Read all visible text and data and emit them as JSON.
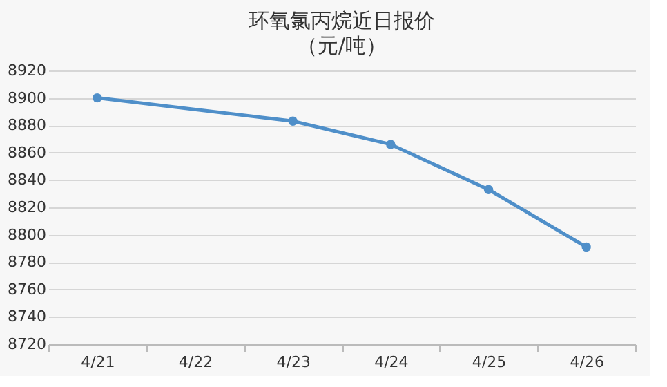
{
  "chart_data": {
    "type": "line",
    "title": "环氧氯丙烷近日报价",
    "subtitle": "（元/吨）",
    "categories": [
      "4/21",
      "4/22",
      "4/23",
      "4/24",
      "4/25",
      "4/26"
    ],
    "series": [
      {
        "color": "#4f8fc9",
        "values": [
          8900,
          null,
          8883,
          8866,
          8833,
          8791
        ]
      }
    ],
    "ylim": [
      8720,
      8920
    ],
    "yticks": [
      8720,
      8740,
      8760,
      8780,
      8800,
      8820,
      8840,
      8860,
      8880,
      8900,
      8920
    ],
    "grid": "y",
    "marker": "circle",
    "line_style": "solid"
  }
}
